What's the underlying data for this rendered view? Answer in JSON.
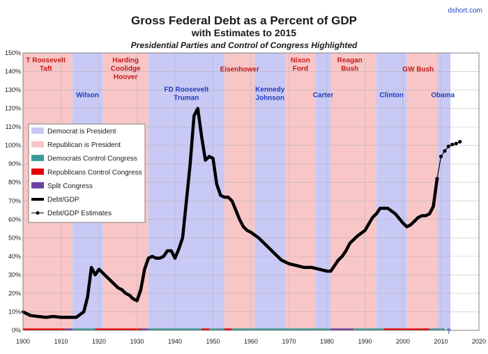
{
  "source_label": "dshort.com",
  "chart_data": {
    "type": "line",
    "title": "Gross Federal Debt as a Percent of GDP",
    "subtitle": "with Estimates to 2015",
    "subtitle2": "Presidential Parties and Control of Congress Highlighted",
    "xlim": [
      1900,
      2020
    ],
    "ylim": [
      0,
      150
    ],
    "x_ticks": [
      "1900",
      "1910",
      "1920",
      "1930",
      "1940",
      "1950",
      "1960",
      "1970",
      "1980",
      "1990",
      "2000",
      "2010",
      "2020"
    ],
    "y_ticks": [
      "0%",
      "10%",
      "20%",
      "30%",
      "40%",
      "50%",
      "60%",
      "70%",
      "80%",
      "90%",
      "100%",
      "110%",
      "120%",
      "130%",
      "140%",
      "150%"
    ],
    "colors": {
      "dem_band": "#c9c9f5",
      "rep_band": "#f8c6c6",
      "dem_congress": "#3a9b94",
      "rep_congress": "#e60000",
      "split_congress": "#6b3fa0",
      "line": "#000000",
      "tick_text": "#1a1a1a",
      "dem_label": "#1f3fbf",
      "rep_label": "#c41a1a"
    },
    "presidencies": [
      {
        "start": 1900,
        "end": 1913,
        "party": "R"
      },
      {
        "start": 1913,
        "end": 1921,
        "party": "D"
      },
      {
        "start": 1921,
        "end": 1933,
        "party": "R"
      },
      {
        "start": 1933,
        "end": 1953,
        "party": "D"
      },
      {
        "start": 1953,
        "end": 1961,
        "party": "R"
      },
      {
        "start": 1961,
        "end": 1969,
        "party": "D"
      },
      {
        "start": 1969,
        "end": 1977,
        "party": "R"
      },
      {
        "start": 1977,
        "end": 1981,
        "party": "D"
      },
      {
        "start": 1981,
        "end": 1993,
        "party": "R"
      },
      {
        "start": 1993,
        "end": 2001,
        "party": "D"
      },
      {
        "start": 2001,
        "end": 2009,
        "party": "R"
      },
      {
        "start": 2009,
        "end": 2012.5,
        "party": "D"
      }
    ],
    "president_labels": [
      {
        "lines": [
          "T Roosevelt",
          "Taft"
        ],
        "x": 1906,
        "y": 145,
        "party": "R"
      },
      {
        "lines": [
          "Wilson"
        ],
        "x": 1917,
        "y": 126,
        "party": "D"
      },
      {
        "lines": [
          "Harding",
          "Coolidge",
          "Hoover"
        ],
        "x": 1927,
        "y": 145,
        "party": "R"
      },
      {
        "lines": [
          "FD Roosevelt",
          "Truman"
        ],
        "x": 1943,
        "y": 129,
        "party": "D"
      },
      {
        "lines": [
          "Eisenhower"
        ],
        "x": 1957,
        "y": 140,
        "party": "R"
      },
      {
        "lines": [
          "Kennedy",
          "Johnson"
        ],
        "x": 1965,
        "y": 129,
        "party": "D"
      },
      {
        "lines": [
          "Nixon",
          "Ford"
        ],
        "x": 1973,
        "y": 145,
        "party": "R"
      },
      {
        "lines": [
          "Carter"
        ],
        "x": 1979,
        "y": 126,
        "party": "D"
      },
      {
        "lines": [
          "Reagan",
          "Bush"
        ],
        "x": 1986,
        "y": 145,
        "party": "R"
      },
      {
        "lines": [
          "Clinton"
        ],
        "x": 1997,
        "y": 126,
        "party": "D"
      },
      {
        "lines": [
          "GW Bush"
        ],
        "x": 2004,
        "y": 140,
        "party": "R"
      },
      {
        "lines": [
          "Obama"
        ],
        "x": 2010.5,
        "y": 126,
        "party": "D"
      }
    ],
    "congress": [
      {
        "start": 1900,
        "end": 1911,
        "party": "R"
      },
      {
        "start": 1911,
        "end": 1913,
        "party": "S"
      },
      {
        "start": 1913,
        "end": 1919,
        "party": "D"
      },
      {
        "start": 1919,
        "end": 1931,
        "party": "R"
      },
      {
        "start": 1931,
        "end": 1933,
        "party": "S"
      },
      {
        "start": 1933,
        "end": 1947,
        "party": "D"
      },
      {
        "start": 1947,
        "end": 1949,
        "party": "R"
      },
      {
        "start": 1949,
        "end": 1953,
        "party": "D"
      },
      {
        "start": 1953,
        "end": 1955,
        "party": "R"
      },
      {
        "start": 1955,
        "end": 1981,
        "party": "D"
      },
      {
        "start": 1981,
        "end": 1987,
        "party": "S"
      },
      {
        "start": 1987,
        "end": 1995,
        "party": "D"
      },
      {
        "start": 1995,
        "end": 2007,
        "party": "R"
      },
      {
        "start": 2007,
        "end": 2011,
        "party": "D"
      }
    ],
    "congress_unknown_label": "?",
    "series": [
      {
        "name": "Debt/GDP",
        "x": [
          1900,
          1902,
          1904,
          1906,
          1908,
          1910,
          1912,
          1914,
          1916,
          1917,
          1918,
          1919,
          1920,
          1921,
          1922,
          1923,
          1924,
          1925,
          1926,
          1927,
          1928,
          1929,
          1930,
          1931,
          1932,
          1933,
          1934,
          1935,
          1936,
          1937,
          1938,
          1939,
          1940,
          1941,
          1942,
          1943,
          1944,
          1945,
          1946,
          1947,
          1948,
          1949,
          1950,
          1951,
          1952,
          1953,
          1954,
          1955,
          1956,
          1957,
          1958,
          1959,
          1960,
          1962,
          1964,
          1966,
          1968,
          1970,
          1972,
          1974,
          1976,
          1978,
          1980,
          1981,
          1982,
          1983,
          1984,
          1985,
          1986,
          1987,
          1988,
          1990,
          1992,
          1993,
          1994,
          1995,
          1996,
          1998,
          2000,
          2001,
          2002,
          2003,
          2004,
          2005,
          2006,
          2007,
          2008,
          2009
        ],
        "y": [
          10,
          8,
          7.5,
          7,
          7.5,
          7,
          7,
          7,
          10,
          18,
          34,
          30,
          33,
          31,
          29,
          27,
          25,
          23,
          22,
          20,
          19,
          17,
          16,
          22,
          33,
          39,
          40,
          39,
          39,
          40,
          43,
          43,
          39,
          44,
          50,
          70,
          90,
          116,
          120,
          105,
          92,
          94,
          93,
          79,
          73,
          72,
          72,
          70,
          65,
          60,
          56,
          54,
          53,
          50,
          46,
          42,
          38,
          36,
          35,
          34,
          34,
          33,
          32,
          32,
          35,
          38,
          40,
          43,
          47,
          49,
          51,
          54,
          61,
          63,
          66,
          66,
          66,
          63,
          58,
          56,
          57,
          59,
          61,
          62,
          62,
          63,
          67,
          82
        ]
      },
      {
        "name": "Debt/GDP Estimates",
        "x": [
          2009,
          2010,
          2011,
          2012,
          2013,
          2014,
          2015
        ],
        "y": [
          82,
          94,
          97,
          99.5,
          100.5,
          101,
          102
        ]
      }
    ],
    "legend": [
      {
        "label": "Democrat is President",
        "kind": "fill",
        "color_key": "dem_band"
      },
      {
        "label": "Republican is President",
        "kind": "fill",
        "color_key": "rep_band"
      },
      {
        "label": "Democrats Control Congress",
        "kind": "fill",
        "color_key": "dem_congress"
      },
      {
        "label": "Republicans Control Congress",
        "kind": "fill",
        "color_key": "rep_congress"
      },
      {
        "label": "Split Congress",
        "kind": "fill",
        "color_key": "split_congress"
      },
      {
        "label": "Debt/GDP",
        "kind": "thick-line",
        "color_key": "line"
      },
      {
        "label": "Debt/GDP Estimates",
        "kind": "marker-line",
        "color_key": "line"
      }
    ]
  }
}
